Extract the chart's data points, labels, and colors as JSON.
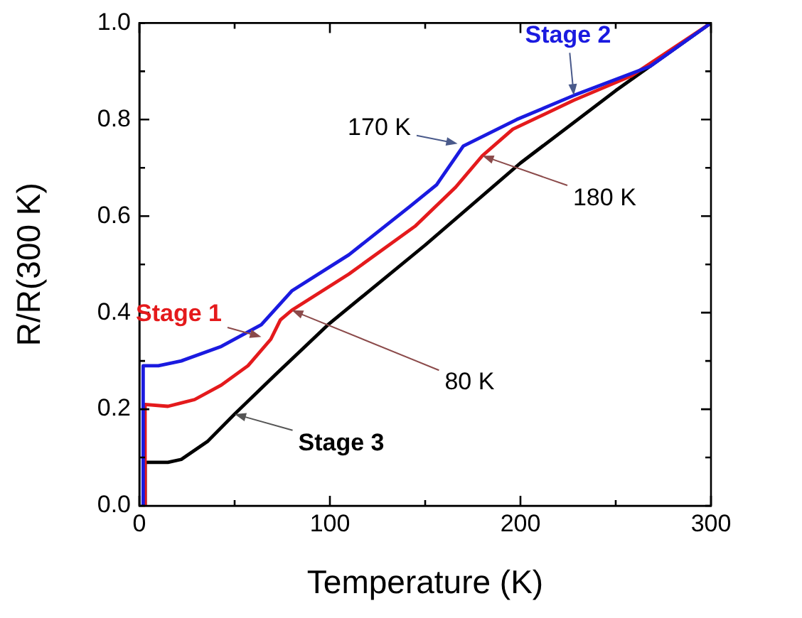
{
  "chart_data": {
    "type": "line",
    "xlabel": "Temperature (K)",
    "ylabel": "R/R(300 K)",
    "xlim": [
      0,
      300
    ],
    "ylim": [
      0,
      1.0
    ],
    "xticks": [
      0,
      {
        "value": 50,
        "label": null
      },
      100,
      {
        "value": 150,
        "label": null
      },
      200,
      {
        "value": 250,
        "label": null
      },
      300
    ],
    "yticks": [
      {
        "value": 0,
        "label": "0.0"
      },
      {
        "value": 0.1,
        "label": null
      },
      0.2,
      {
        "value": 0.3,
        "label": null
      },
      0.4,
      {
        "value": 0.5,
        "label": null
      },
      0.6,
      {
        "value": 0.7,
        "label": null
      },
      0.8,
      {
        "value": 0.9,
        "label": null
      },
      {
        "value": 1,
        "label": "1.0"
      }
    ],
    "grid": false,
    "legend": false,
    "marker": "none",
    "line_style": "solid",
    "series": [
      {
        "color": "#1a1ae0",
        "x": [
          2,
          2,
          10,
          22,
          43,
          64,
          80,
          110,
          142,
          156,
          170,
          198,
          228,
          268,
          300
        ],
        "values": [
          0,
          0.29,
          0.29,
          0.3,
          0.33,
          0.375,
          0.445,
          0.52,
          0.62,
          0.665,
          0.745,
          0.8,
          0.85,
          0.91,
          1.0
        ]
      },
      {
        "color": "#e41a1c",
        "x": [
          3,
          3,
          15,
          29,
          43,
          57,
          69,
          74,
          80,
          110,
          145,
          166,
          180,
          196,
          228,
          258,
          300
        ],
        "values": [
          0,
          0.21,
          0.206,
          0.22,
          0.25,
          0.29,
          0.345,
          0.385,
          0.405,
          0.48,
          0.58,
          0.66,
          0.725,
          0.78,
          0.84,
          0.89,
          1.0
        ]
      },
      {
        "color": "#000000",
        "x": [
          3,
          3,
          15,
          22,
          36,
          50,
          71,
          99,
          150,
          200,
          250,
          300
        ],
        "values": [
          0,
          0.09,
          0.09,
          0.096,
          0.134,
          0.19,
          0.27,
          0.375,
          0.54,
          0.71,
          0.86,
          1.0
        ]
      }
    ],
    "annotations": [
      {
        "text": "Stage 1",
        "x": 64,
        "y": 0.35
      },
      {
        "text": "Stage 2",
        "x": 228,
        "y": 0.85
      },
      {
        "text": "Stage 3",
        "x": 50,
        "y": 0.19
      },
      {
        "text": "80 K",
        "x": 80,
        "y": 0.405
      },
      {
        "text": "170 K",
        "x": 167,
        "y": 0.75
      },
      {
        "text": "180 K",
        "x": 180,
        "y": 0.725
      }
    ]
  }
}
